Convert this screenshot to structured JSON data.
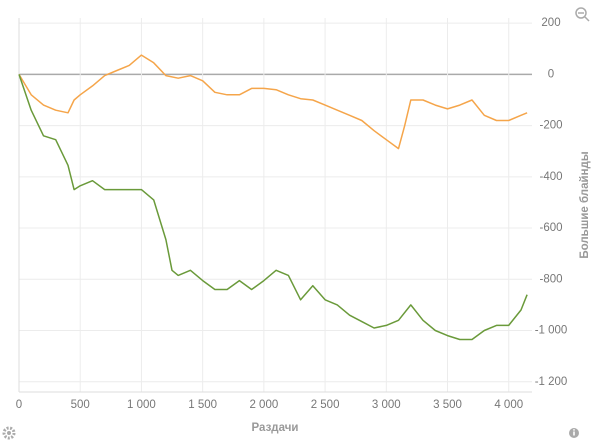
{
  "chart_data": {
    "type": "line",
    "x_label": "Раздачи",
    "y_label": "Большие блайнды",
    "xlim": [
      0,
      4190
    ],
    "ylim": [
      -1240,
      220
    ],
    "xticks": [
      0,
      500,
      {
        "value": 1000,
        "label": "1 000"
      },
      {
        "value": 1500,
        "label": "1 500"
      },
      {
        "value": 2000,
        "label": "2 000"
      },
      {
        "value": 2500,
        "label": "2 500"
      },
      {
        "value": 3000,
        "label": "3 000"
      },
      {
        "value": 3500,
        "label": "3 500"
      },
      {
        "value": 4000,
        "label": "4 000"
      }
    ],
    "yticks": [
      200,
      0,
      -200,
      -400,
      -600,
      -800,
      {
        "value": -1000,
        "label": "-1 000"
      },
      {
        "value": -1200,
        "label": "-1 200"
      }
    ],
    "grid": true,
    "series": [
      {
        "color": "#f5a54a",
        "x": [
          0,
          100,
          200,
          300,
          400,
          450,
          500,
          600,
          700,
          800,
          900,
          1000,
          1100,
          1200,
          1300,
          1400,
          1500,
          1600,
          1700,
          1800,
          1900,
          2000,
          2100,
          2200,
          2300,
          2400,
          2500,
          2600,
          2700,
          2800,
          2900,
          3000,
          3100,
          3150,
          3200,
          3300,
          3400,
          3500,
          3600,
          3700,
          3800,
          3900,
          4000,
          4100,
          4150
        ],
        "values": [
          0,
          -80,
          -120,
          -140,
          -150,
          -100,
          -80,
          -45,
          -5,
          15,
          35,
          75,
          45,
          -5,
          -15,
          -5,
          -25,
          -70,
          -80,
          -80,
          -55,
          -55,
          -60,
          -80,
          -95,
          -100,
          -120,
          -140,
          -160,
          -180,
          -220,
          -255,
          -290,
          -200,
          -100,
          -100,
          -120,
          -135,
          -120,
          -100,
          -160,
          -180,
          -180,
          -160,
          -150
        ]
      },
      {
        "color": "#6a9a3a",
        "x": [
          0,
          100,
          200,
          300,
          400,
          450,
          500,
          600,
          700,
          800,
          900,
          1000,
          1100,
          1200,
          1250,
          1300,
          1400,
          1500,
          1600,
          1700,
          1800,
          1900,
          2000,
          2100,
          2200,
          2300,
          2400,
          2500,
          2600,
          2700,
          2800,
          2900,
          3000,
          3100,
          3200,
          3300,
          3400,
          3500,
          3600,
          3700,
          3800,
          3900,
          4000,
          4100,
          4150
        ],
        "values": [
          0,
          -140,
          -240,
          -255,
          -355,
          -450,
          -435,
          -415,
          -450,
          -450,
          -450,
          -450,
          -490,
          -645,
          -765,
          -785,
          -765,
          -805,
          -840,
          -840,
          -805,
          -840,
          -805,
          -765,
          -785,
          -880,
          -825,
          -880,
          -900,
          -940,
          -965,
          -990,
          -980,
          -960,
          -900,
          -960,
          -1000,
          -1020,
          -1035,
          -1035,
          -1000,
          -980,
          -980,
          -920,
          -860
        ]
      }
    ]
  }
}
